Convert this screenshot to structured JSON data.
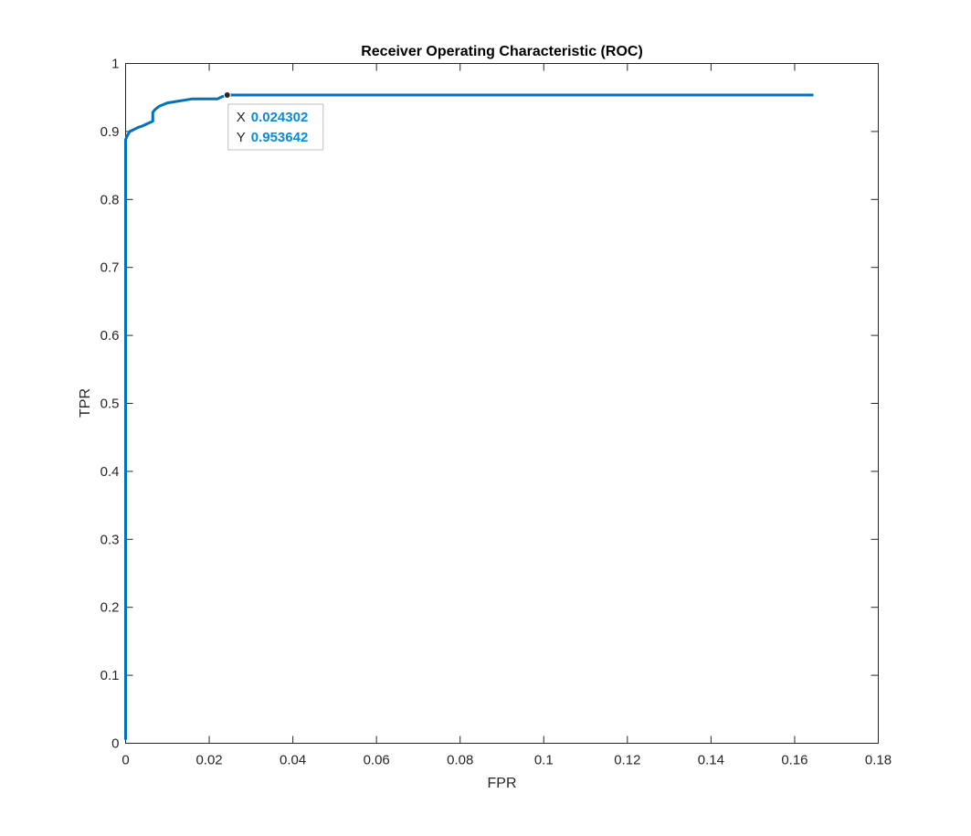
{
  "chart_data": {
    "type": "line",
    "title": "Receiver Operating Characteristic (ROC)",
    "xlabel": "FPR",
    "ylabel": "TPR",
    "xlim": [
      0,
      0.18
    ],
    "ylim": [
      0,
      1
    ],
    "xticks": [
      0,
      0.02,
      0.04,
      0.06,
      0.08,
      0.1,
      0.12,
      0.14,
      0.16,
      0.18
    ],
    "xtick_labels": [
      "0",
      "0.02",
      "0.04",
      "0.06",
      "0.08",
      "0.1",
      "0.12",
      "0.14",
      "0.16",
      "0.18"
    ],
    "yticks": [
      0,
      0.1,
      0.2,
      0.3,
      0.4,
      0.5,
      0.6,
      0.7,
      0.8,
      0.9,
      1
    ],
    "ytick_labels": [
      "0",
      "0.1",
      "0.2",
      "0.3",
      "0.4",
      "0.5",
      "0.6",
      "0.7",
      "0.8",
      "0.9",
      "1"
    ],
    "grid": false,
    "line_color": "#0072BD",
    "series": [
      {
        "x": [
          0,
          0,
          0,
          0.0005,
          0.001,
          0.002,
          0.003,
          0.004,
          0.005,
          0.0065,
          0.0065,
          0.007,
          0.008,
          0.01,
          0.012,
          0.014,
          0.016,
          0.018,
          0.02,
          0.022,
          0.023,
          0.0243,
          0.03,
          0.06,
          0.1,
          0.14,
          0.1645
        ],
        "y": [
          0.005,
          0.88,
          0.888,
          0.895,
          0.9,
          0.903,
          0.906,
          0.908,
          0.911,
          0.915,
          0.928,
          0.932,
          0.937,
          0.942,
          0.944,
          0.946,
          0.948,
          0.948,
          0.948,
          0.948,
          0.951,
          0.9536,
          0.9536,
          0.9536,
          0.9536,
          0.9536,
          0.9536
        ]
      }
    ],
    "datatip": {
      "x": 0.024302,
      "y": 0.953642,
      "x_key": "X",
      "y_key": "Y",
      "x_text": "0.024302",
      "y_text": "0.953642",
      "value_color": "#0B8BD6"
    }
  }
}
